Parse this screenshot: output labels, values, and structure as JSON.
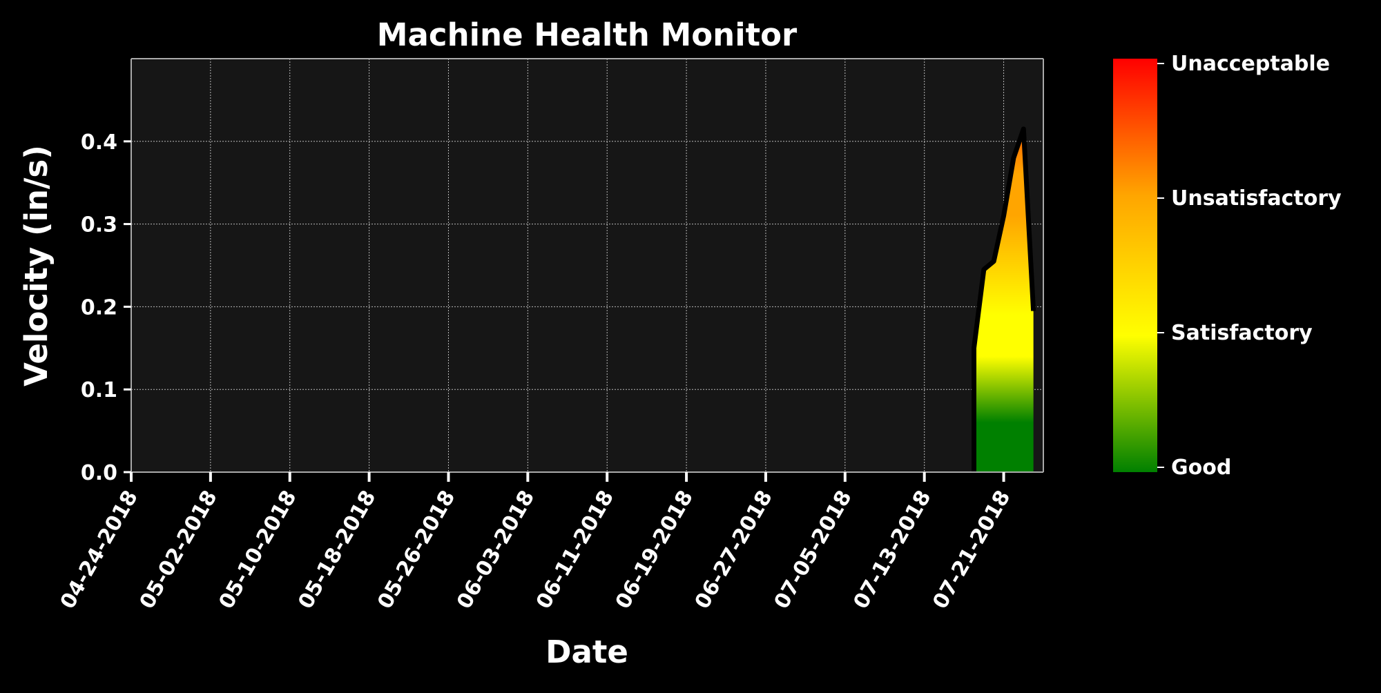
{
  "chart_data": {
    "type": "area",
    "title": "Machine Health Monitor",
    "xlabel": "Date",
    "ylabel": "Velocity (in/s)",
    "xlim": [
      "04-24-2018",
      "07-25-2018"
    ],
    "ylim": [
      0,
      0.5
    ],
    "x_ticks": [
      "04-24-2018",
      "05-02-2018",
      "05-10-2018",
      "05-18-2018",
      "05-26-2018",
      "06-03-2018",
      "06-11-2018",
      "06-19-2018",
      "06-27-2018",
      "07-05-2018",
      "07-13-2018",
      "07-21-2018"
    ],
    "y_ticks": [
      "0.0",
      "0.1",
      "0.2",
      "0.3",
      "0.4"
    ],
    "grid": true,
    "series": [
      {
        "x": [
          "07-18-2018",
          "07-19-2018",
          "07-20-2018",
          "07-21-2018",
          "07-22-2018",
          "07-23-2018",
          "07-24-2018"
        ],
        "values": [
          0.15,
          0.245,
          0.255,
          0.31,
          0.38,
          0.415,
          0.195
        ]
      }
    ],
    "colorbar": {
      "labels": [
        "Unacceptable",
        "Unsatisfactory",
        "Satisfactory",
        "Good"
      ],
      "colors": [
        "#ff0000",
        "#ffa500",
        "#ffff00",
        "#008000"
      ]
    },
    "colors": {
      "background": "#000000",
      "plot_background": "#161616",
      "line": "#000000",
      "text": "#ffffff"
    }
  }
}
